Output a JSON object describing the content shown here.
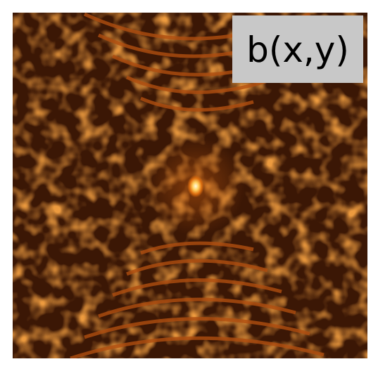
{
  "image": {
    "label": "b(x,y)"
  }
}
